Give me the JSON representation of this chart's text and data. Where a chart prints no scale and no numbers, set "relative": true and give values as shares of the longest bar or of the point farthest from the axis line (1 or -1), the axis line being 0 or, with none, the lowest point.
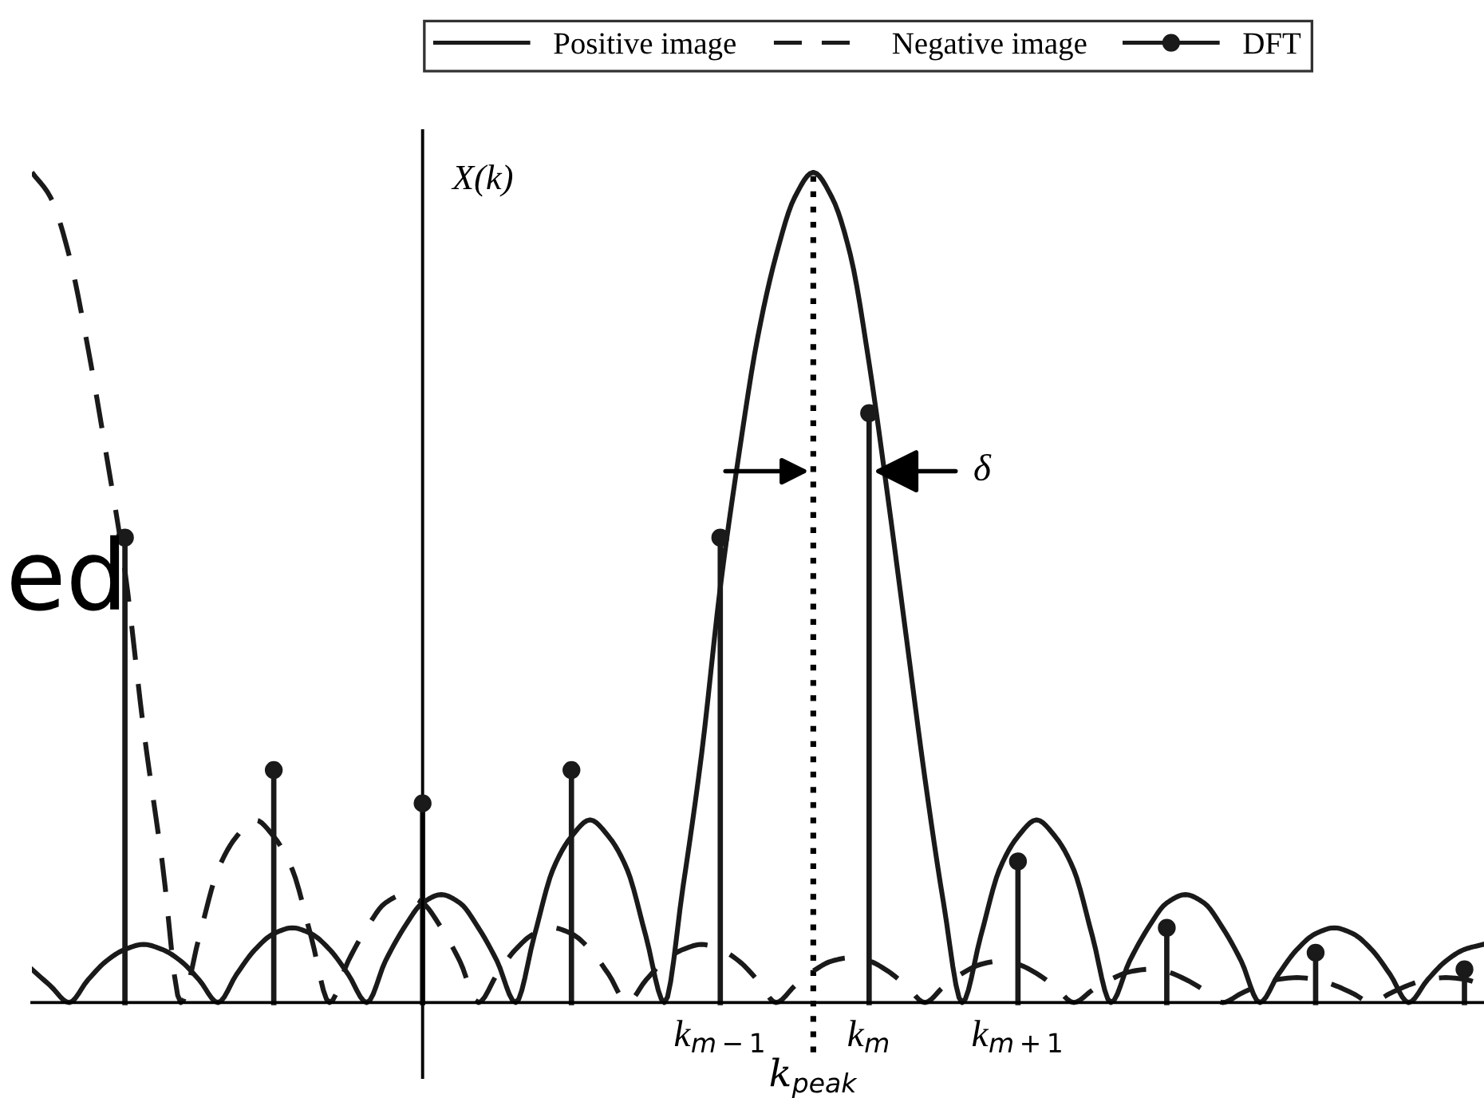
{
  "chart_data": {
    "type": "line",
    "relative": true,
    "ylabel": "X(k)",
    "categories": [
      null,
      null,
      null,
      null,
      null,
      null,
      null,
      null,
      null,
      null,
      null,
      null,
      null,
      null,
      null,
      null,
      null,
      null,
      null,
      null,
      null,
      null,
      null,
      null,
      null,
      null,
      null,
      null,
      null,
      null,
      null,
      null,
      null,
      null,
      null,
      null,
      null,
      "k$_{m−1}$",
      null,
      null,
      null,
      null,
      "k$_{peak}$",
      null,
      null,
      "k$_{m}$",
      null,
      null,
      null,
      null,
      null,
      null,
      null,
      "k$_{m+1}$",
      null,
      null,
      null,
      null,
      null,
      null,
      null,
      null,
      null,
      null,
      null,
      null,
      null,
      null,
      null,
      null,
      null,
      null,
      null,
      null,
      null,
      null,
      null,
      null,
      null
    ],
    "series": [
      {
        "name": "Positive image",
        "line_style": "solid",
        "color": "#1a1a1a",
        "values": [
          0.04,
          0.02,
          0,
          0.027,
          0.05,
          0.064,
          0.07,
          0.064,
          0.05,
          0.027,
          0,
          0.034,
          0.064,
          0.083,
          0.09,
          0.083,
          0.064,
          0.034,
          0,
          0.05,
          0.09,
          0.12,
          0.13,
          0.12,
          0.09,
          0.05,
          0,
          0.08,
          0.16,
          0.2,
          0.22,
          0.2,
          0.16,
          0.08,
          0,
          0.14,
          0.3,
          0.5,
          0.66,
          0.8,
          0.9,
          0.97,
          1.0,
          0.97,
          0.9,
          0.77,
          0.61,
          0.44,
          0.27,
          0.12,
          0,
          0.08,
          0.16,
          0.2,
          0.22,
          0.2,
          0.16,
          0.08,
          0,
          0.05,
          0.09,
          0.12,
          0.13,
          0.12,
          0.09,
          0.05,
          0,
          0.034,
          0.064,
          0.083,
          0.09,
          0.083,
          0.064,
          0.034,
          0,
          0.027,
          0.05,
          0.064,
          0.07
        ]
      },
      {
        "name": "Negative image",
        "line_style": "dashed",
        "color": "#1a1a1a",
        "values": [
          1.0,
          0.97,
          0.9,
          0.79,
          0.66,
          0.52,
          0.33,
          0.17,
          0,
          0.08,
          0.16,
          0.2,
          0.22,
          0.2,
          0.16,
          0.08,
          0,
          0.05,
          0.09,
          0.12,
          0.13,
          0.12,
          0.09,
          0.05,
          0,
          0.034,
          0.064,
          0.083,
          0.09,
          0.083,
          0.064,
          0.034,
          0,
          0.027,
          0.05,
          0.064,
          0.07,
          0.064,
          0.05,
          0.027,
          0,
          0.02,
          0.038,
          0.05,
          0.054,
          0.05,
          0.038,
          0.02,
          0,
          0.019,
          0.035,
          0.046,
          0.05,
          0.046,
          0.035,
          0.019,
          0,
          0.015,
          0.028,
          0.037,
          0.04,
          0.037,
          0.028,
          0.015,
          0,
          0.011,
          0.021,
          0.028,
          0.03,
          0.028,
          0.021,
          0.011,
          0,
          0.011,
          0.021,
          0.028,
          0.03,
          0.028,
          0.021
        ]
      },
      {
        "name": "DFT",
        "type": "lollipop",
        "marker": "circle",
        "color": "#1a1a1a",
        "values": [
          null,
          null,
          null,
          null,
          null,
          0.56,
          null,
          null,
          null,
          null,
          null,
          null,
          null,
          0.28,
          null,
          null,
          null,
          null,
          null,
          null,
          null,
          0.24,
          null,
          null,
          null,
          null,
          null,
          null,
          null,
          0.28,
          null,
          null,
          null,
          null,
          null,
          null,
          null,
          0.56,
          null,
          null,
          null,
          null,
          null,
          null,
          null,
          0.71,
          null,
          null,
          null,
          null,
          null,
          null,
          null,
          0.17,
          null,
          null,
          null,
          null,
          null,
          null,
          null,
          0.09,
          null,
          null,
          null,
          null,
          null,
          null,
          null,
          0.06,
          null,
          null,
          null,
          null,
          null,
          null,
          null,
          0.04,
          null
        ]
      }
    ],
    "ref_lines": [
      {
        "axis": "x",
        "value": "k$_{peak}$",
        "line_style": "dotted",
        "color": "#000000"
      }
    ],
    "annotations": [
      "δ",
      "ed"
    ],
    "legend": "top",
    "grid": false
  }
}
